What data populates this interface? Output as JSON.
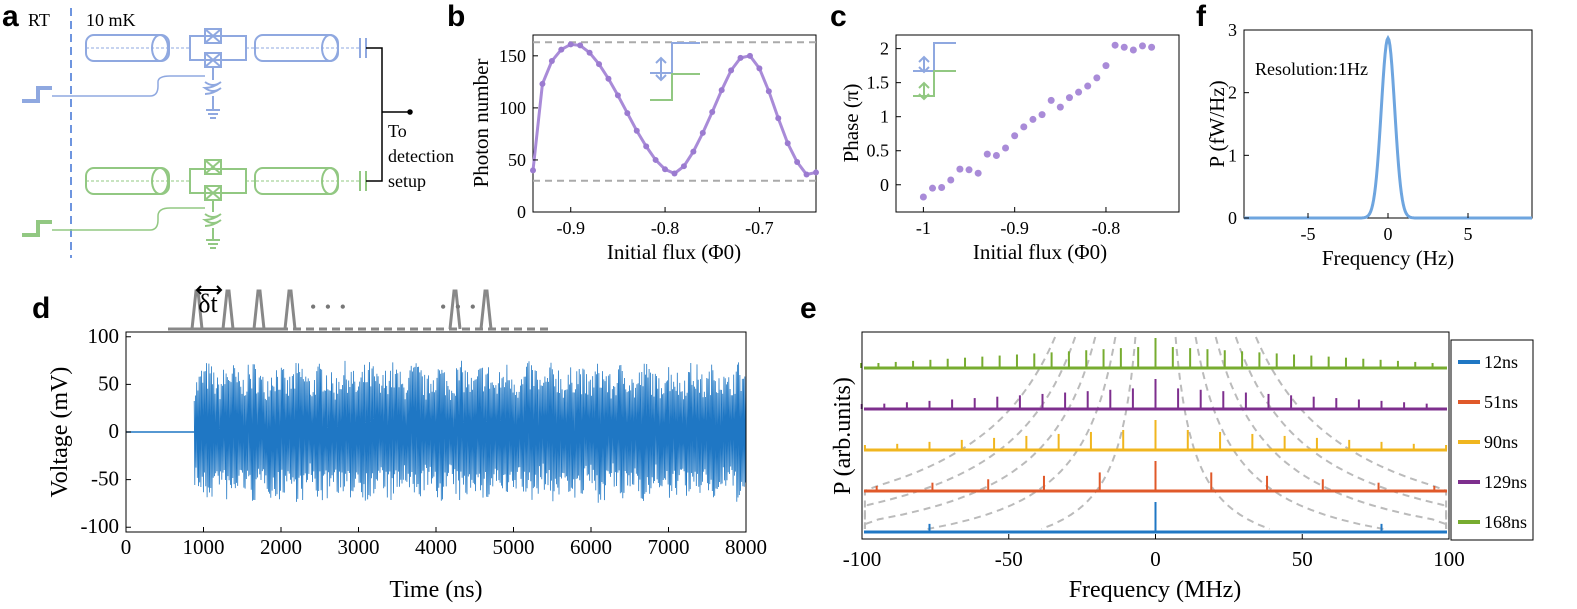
{
  "panel_labels": {
    "a": "a",
    "b": "b",
    "c": "c",
    "d": "d",
    "e": "e",
    "f": "f"
  },
  "panel_a": {
    "rt_label": "RT",
    "temp_label": "10 mK",
    "output_label_lines": [
      "To",
      "detection",
      "setup"
    ],
    "colors": {
      "blue": "#8fa8e0",
      "green": "#92c882"
    }
  },
  "chart_data": [
    {
      "id": "b",
      "type": "line",
      "xlabel": "Initial flux (Φ0)",
      "ylabel": "Photon number",
      "xlim": [
        -0.94,
        -0.64
      ],
      "ylim": [
        0,
        170
      ],
      "xticks": [
        -0.9,
        -0.8,
        -0.7
      ],
      "xtick_labels": [
        "-0.9",
        "-0.8",
        "-0.7"
      ],
      "yticks": [
        0,
        50,
        100,
        150
      ],
      "ytick_labels": [
        "0",
        "50",
        "100",
        "150"
      ],
      "reference_lines": [
        163,
        30
      ],
      "x": [
        -0.94,
        -0.93,
        -0.92,
        -0.91,
        -0.9,
        -0.89,
        -0.88,
        -0.87,
        -0.86,
        -0.85,
        -0.84,
        -0.83,
        -0.82,
        -0.81,
        -0.8,
        -0.79,
        -0.78,
        -0.77,
        -0.76,
        -0.75,
        -0.74,
        -0.73,
        -0.72,
        -0.71,
        -0.7,
        -0.69,
        -0.68,
        -0.67,
        -0.66,
        -0.65,
        -0.64
      ],
      "y": [
        40,
        123,
        145,
        156,
        161,
        160,
        153,
        142,
        128,
        112,
        95,
        78,
        63,
        50,
        41,
        37,
        44,
        58,
        76,
        96,
        117,
        136,
        148,
        150,
        138,
        116,
        90,
        66,
        48,
        36,
        38
      ],
      "color": "#a98bd8"
    },
    {
      "id": "c",
      "type": "scatter",
      "xlabel": "Initial flux (Φ0)",
      "ylabel": "Phase (π)",
      "xlim": [
        -1.03,
        -0.72
      ],
      "ylim": [
        -0.4,
        2.2
      ],
      "xticks": [
        -1,
        -0.9,
        -0.8
      ],
      "xtick_labels": [
        "-1",
        "-0.9",
        "-0.8"
      ],
      "yticks": [
        0,
        0.5,
        1,
        1.5,
        2
      ],
      "ytick_labels": [
        "0",
        "0.5",
        "1",
        "1.5",
        "2"
      ],
      "x": [
        -1.0,
        -0.99,
        -0.98,
        -0.97,
        -0.96,
        -0.95,
        -0.94,
        -0.93,
        -0.92,
        -0.91,
        -0.9,
        -0.89,
        -0.88,
        -0.87,
        -0.86,
        -0.85,
        -0.84,
        -0.83,
        -0.82,
        -0.81,
        -0.8,
        -0.79,
        -0.78,
        -0.77,
        -0.76,
        -0.75
      ],
      "y": [
        -0.18,
        -0.05,
        -0.04,
        0.07,
        0.23,
        0.22,
        0.17,
        0.45,
        0.43,
        0.54,
        0.72,
        0.85,
        0.96,
        1.03,
        1.24,
        1.14,
        1.28,
        1.36,
        1.45,
        1.57,
        1.75,
        2.05,
        2.02,
        1.98,
        2.04,
        2.02
      ],
      "color": "#a98bd8"
    },
    {
      "id": "f",
      "type": "line",
      "xlabel": "Frequency (Hz)",
      "ylabel": "P (fW/Hz)",
      "annotation": "Resolution:1Hz",
      "xlim": [
        -9,
        9
      ],
      "ylim": [
        0,
        3
      ],
      "xticks": [
        -5,
        0,
        5
      ],
      "xtick_labels": [
        "-5",
        "0",
        "5"
      ],
      "yticks": [
        0,
        1,
        2,
        3
      ],
      "ytick_labels": [
        "0",
        "1",
        "2",
        "3"
      ],
      "peak_center": 0,
      "peak_height": 2.87,
      "peak_sigma": 0.42,
      "color": "#6ea5df"
    },
    {
      "id": "d",
      "type": "line",
      "xlabel": "Time (ns)",
      "ylabel": "Voltage (mV)",
      "xlim": [
        0,
        8000
      ],
      "ylim": [
        -105,
        105
      ],
      "xticks": [
        0,
        1000,
        2000,
        3000,
        4000,
        5000,
        6000,
        7000,
        8000
      ],
      "xtick_labels": [
        "0",
        "1000",
        "2000",
        "3000",
        "4000",
        "5000",
        "6000",
        "7000",
        "8000"
      ],
      "yticks": [
        -100,
        -50,
        0,
        50,
        100
      ],
      "ytick_labels": [
        "-100",
        "-50",
        "0",
        "50",
        "100"
      ],
      "signal_start": 880,
      "amplitude": 75,
      "pulse_times": [
        880,
        1190,
        1500,
        1810,
        3460,
        3770
      ],
      "pulse_spacing_label": "δt",
      "ellipsis_1": "• • •",
      "ellipsis_2": "• • •",
      "color": "#1f77c4"
    },
    {
      "id": "e",
      "type": "line",
      "xlabel": "Frequency (MHz)",
      "ylabel": "P (arb.units)",
      "xlim": [
        -100,
        100
      ],
      "xticks": [
        -100,
        -50,
        0,
        50,
        100
      ],
      "xtick_labels": [
        "-100",
        "-50",
        "0",
        "50",
        "100"
      ],
      "legend_position": "right",
      "series": [
        {
          "name": "12ns",
          "color": "#1f77c4",
          "spacing": 77,
          "offset": 0
        },
        {
          "name": "51ns",
          "color": "#e0592a",
          "spacing": 19,
          "offset": 1
        },
        {
          "name": "90ns",
          "color": "#f0b61f",
          "spacing": 11,
          "offset": 2
        },
        {
          "name": "129ns",
          "color": "#7e2f8e",
          "spacing": 7.7,
          "offset": 3
        },
        {
          "name": "168ns",
          "color": "#77ac30",
          "spacing": 5.9,
          "offset": 4
        }
      ]
    }
  ]
}
